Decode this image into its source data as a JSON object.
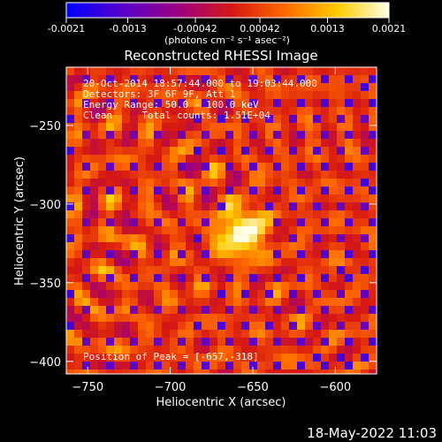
{
  "colorbar": {
    "ticks": [
      "-0.0021",
      "-0.0013",
      "-0.00042",
      "0.00042",
      "0.0013",
      "0.0021"
    ],
    "tick_values": [
      -0.0021,
      -0.0013,
      -0.00042,
      0.00042,
      0.0013,
      0.0021
    ],
    "range": [
      -0.0021,
      0.0021
    ],
    "unit_label": "(photons cm⁻² s⁻¹ asec⁻²)",
    "colors": [
      "#0000ff",
      "#5a00c8",
      "#a0007a",
      "#d81a10",
      "#ff6a00",
      "#ffcc00",
      "#ffffe8"
    ]
  },
  "chart_data": {
    "type": "heatmap",
    "title": "Reconstructed RHESSI Image",
    "xlabel": "Heliocentric X (arcsec)",
    "ylabel": "Heliocentric Y (arcsec)",
    "xlim": [
      -763,
      -575
    ],
    "ylim": [
      -408,
      -213
    ],
    "x_ticks": [
      -750,
      -700,
      -650,
      -600
    ],
    "y_ticks": [
      -250,
      -300,
      -350,
      -400
    ],
    "x_tick_labels": [
      "−750",
      "−700",
      "−650",
      "−600"
    ],
    "y_tick_labels": [
      "−250",
      "−300",
      "−350",
      "−400"
    ],
    "peak": {
      "x": -657,
      "y": -318
    },
    "annotations": [
      "20-Oct-2014 18:57:44.000 to 19:03:44.000",
      "Detectors: 3F 6F 9F, Att 1",
      "Energy Range: 50.0 - 100.0 keV",
      "Clean     Total counts: 1.51E+04"
    ],
    "peak_label": "Position of Peak = [-657,-318]"
  },
  "footer": {
    "timestamp": "18-May-2022 11:03"
  }
}
